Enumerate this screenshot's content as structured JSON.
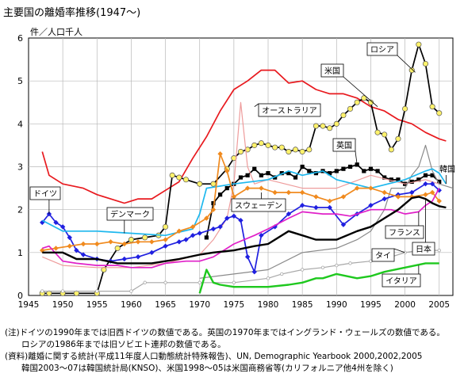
{
  "chart_data": {
    "type": "line",
    "title": "主要国の離婚率推移(1947〜)",
    "ylabel": "件／人口千人",
    "xlabel": "",
    "xlim": [
      1945,
      2007
    ],
    "ylim": [
      0,
      6
    ],
    "xticks": [
      1945,
      1950,
      1955,
      1960,
      1965,
      1970,
      1975,
      1980,
      1985,
      1990,
      1995,
      2000,
      2005
    ],
    "yticks": [
      0,
      1,
      2,
      3,
      4,
      5,
      6
    ],
    "grid": true,
    "series": [
      {
        "name": "米国",
        "color": "#e8191e",
        "marker": "none",
        "x": [
          1947,
          1948,
          1950,
          1953,
          1955,
          1957,
          1959,
          1961,
          1963,
          1965,
          1967,
          1969,
          1971,
          1973,
          1975,
          1977,
          1979,
          1981,
          1983,
          1985,
          1987,
          1989,
          1991,
          1993,
          1995,
          1997,
          1999,
          2001,
          2003,
          2005,
          2006
        ],
        "y": [
          3.35,
          2.8,
          2.6,
          2.5,
          2.35,
          2.25,
          2.15,
          2.25,
          2.25,
          2.45,
          2.65,
          3.2,
          3.7,
          4.3,
          4.8,
          5.0,
          5.25,
          5.25,
          4.95,
          5.0,
          4.8,
          4.7,
          4.7,
          4.6,
          4.4,
          4.3,
          4.1,
          4.0,
          3.8,
          3.65,
          3.6
        ]
      },
      {
        "name": "ロシア",
        "color": "#000000",
        "marker": "circle",
        "mfill": "#fff26b",
        "x": [
          1947,
          1948,
          1950,
          1952,
          1955,
          1956,
          1958,
          1960,
          1962,
          1964,
          1965,
          1966,
          1967,
          1968,
          1970,
          1972,
          1974,
          1975,
          1976,
          1977,
          1978,
          1979,
          1980,
          1981,
          1982,
          1983,
          1984,
          1985,
          1986,
          1987,
          1988,
          1989,
          1990,
          1991,
          1992,
          1993,
          1994,
          1995,
          1996,
          1997,
          1998,
          1999,
          2000,
          2001,
          2002,
          2003,
          2004,
          2005
        ],
        "y": [
          0.05,
          0.05,
          0.05,
          0.05,
          0.05,
          0.6,
          1.1,
          1.3,
          1.35,
          1.4,
          1.6,
          2.8,
          2.75,
          2.7,
          2.6,
          2.6,
          2.95,
          3.2,
          3.35,
          3.4,
          3.5,
          3.55,
          3.5,
          3.45,
          3.45,
          3.35,
          3.4,
          3.35,
          3.4,
          3.95,
          3.95,
          3.9,
          4.0,
          4.2,
          4.35,
          4.5,
          4.6,
          4.5,
          3.8,
          3.75,
          3.4,
          3.65,
          4.35,
          5.25,
          5.85,
          5.4,
          4.4,
          4.25
        ]
      },
      {
        "name": "英国",
        "color": "#000000",
        "marker": "square",
        "mfill": "#000000",
        "x": [
          1971,
          1972,
          1973,
          1974,
          1975,
          1976,
          1977,
          1978,
          1979,
          1980,
          1981,
          1982,
          1983,
          1984,
          1985,
          1986,
          1987,
          1988,
          1989,
          1990,
          1991,
          1992,
          1993,
          1994,
          1995,
          1996,
          1997,
          1998,
          1999,
          2000,
          2001,
          2002,
          2003,
          2004,
          2005
        ],
        "y": [
          1.35,
          2.15,
          2.35,
          2.5,
          2.6,
          2.75,
          2.8,
          2.95,
          2.8,
          2.85,
          2.75,
          2.85,
          2.85,
          2.75,
          3.0,
          2.9,
          2.85,
          2.9,
          2.85,
          2.9,
          2.95,
          3.0,
          3.05,
          2.9,
          2.95,
          2.9,
          2.75,
          2.7,
          2.7,
          2.6,
          2.65,
          2.7,
          2.8,
          2.8,
          2.65
        ]
      },
      {
        "name": "オーストラリア",
        "color": "#ee9c9c",
        "marker": "none",
        "x": [
          1947,
          1950,
          1955,
          1960,
          1965,
          1970,
          1972,
          1974,
          1975,
          1976,
          1977,
          1978,
          1980,
          1985,
          1990,
          1995,
          2000,
          2003,
          2005
        ],
        "y": [
          0.9,
          0.7,
          0.65,
          0.65,
          0.75,
          0.95,
          1.3,
          1.8,
          2.6,
          4.5,
          3.0,
          2.6,
          2.7,
          2.5,
          2.5,
          2.8,
          2.6,
          2.7,
          2.6
        ]
      },
      {
        "name": "韓国",
        "color": "#8a8a8a",
        "marker": "none",
        "x": [
          1970,
          1975,
          1980,
          1985,
          1990,
          1993,
          1995,
          1997,
          1998,
          1999,
          2000,
          2001,
          2002,
          2003,
          2004,
          2005,
          2006,
          2007
        ],
        "y": [
          0.4,
          0.5,
          0.6,
          1.0,
          1.1,
          1.3,
          1.5,
          2.0,
          2.5,
          2.5,
          2.5,
          2.8,
          3.0,
          3.5,
          2.9,
          2.6,
          2.55,
          2.5
        ]
      },
      {
        "name": "ドイツ",
        "color": "#2020e0",
        "marker": "diamond",
        "mfill": "#2020e0",
        "x": [
          1947,
          1948,
          1949,
          1950,
          1951,
          1952,
          1953,
          1955,
          1957,
          1959,
          1961,
          1963,
          1965,
          1967,
          1968,
          1969,
          1970,
          1972,
          1973,
          1974,
          1975,
          1976,
          1977,
          1978,
          1979,
          1981,
          1983,
          1985,
          1987,
          1989,
          1991,
          1993,
          1995,
          1997,
          1999,
          2001,
          2003,
          2004,
          2005
        ],
        "y": [
          1.7,
          1.9,
          1.7,
          1.6,
          1.35,
          1.05,
          0.95,
          0.85,
          0.8,
          0.85,
          0.9,
          1.0,
          1.15,
          1.25,
          1.3,
          1.4,
          1.45,
          1.55,
          1.6,
          1.8,
          1.85,
          1.75,
          0.9,
          0.55,
          1.4,
          1.6,
          1.9,
          2.1,
          2.05,
          2.05,
          1.65,
          1.9,
          2.1,
          2.25,
          2.35,
          2.4,
          2.6,
          2.6,
          2.45
        ]
      },
      {
        "name": "デンマーク",
        "color": "#1eb8ee",
        "marker": "none",
        "x": [
          1947,
          1950,
          1955,
          1960,
          1965,
          1969,
          1970,
          1971,
          1975,
          1980,
          1983,
          1985,
          1988,
          1990,
          1995,
          2000,
          2003,
          2004,
          2005,
          2006
        ],
        "y": [
          1.75,
          1.5,
          1.5,
          1.45,
          1.4,
          1.55,
          1.9,
          2.5,
          2.6,
          2.7,
          2.9,
          2.8,
          2.9,
          2.7,
          2.5,
          2.7,
          2.9,
          2.95,
          2.85,
          2.6
        ]
      },
      {
        "name": "スウェーデン",
        "color": "#f08a1e",
        "marker": "diamond",
        "mfill": "#f08a1e",
        "x": [
          1947,
          1949,
          1951,
          1953,
          1955,
          1957,
          1959,
          1961,
          1963,
          1965,
          1967,
          1969,
          1971,
          1972,
          1973,
          1974,
          1975,
          1977,
          1979,
          1981,
          1983,
          1985,
          1987,
          1989,
          1991,
          1993,
          1995,
          1997,
          1999,
          2001,
          2003,
          2004,
          2005
        ],
        "y": [
          1.05,
          1.1,
          1.15,
          1.2,
          1.2,
          1.25,
          1.2,
          1.25,
          1.25,
          1.3,
          1.5,
          1.6,
          1.8,
          2.0,
          3.3,
          2.9,
          2.3,
          2.5,
          2.5,
          2.4,
          2.4,
          2.4,
          2.3,
          2.2,
          2.3,
          2.5,
          2.5,
          2.4,
          2.3,
          2.3,
          2.35,
          2.4,
          2.2
        ]
      },
      {
        "name": "フランス",
        "color": "#e020c8",
        "marker": "none",
        "x": [
          1947,
          1948,
          1950,
          1952,
          1955,
          1958,
          1960,
          1963,
          1965,
          1968,
          1970,
          1972,
          1975,
          1978,
          1980,
          1983,
          1985,
          1988,
          1990,
          1992,
          1995,
          1998,
          2000,
          2002,
          2003,
          2004,
          2005
        ],
        "y": [
          1.1,
          1.15,
          0.8,
          0.75,
          0.7,
          0.7,
          0.65,
          0.65,
          0.75,
          0.8,
          0.8,
          0.9,
          1.2,
          1.4,
          1.55,
          1.8,
          1.95,
          1.9,
          1.9,
          1.85,
          2.0,
          2.0,
          1.9,
          1.95,
          2.1,
          2.2,
          2.5
        ]
      },
      {
        "name": "日本",
        "color": "#000000",
        "marker": "none",
        "x": [
          1947,
          1950,
          1952,
          1955,
          1958,
          1960,
          1963,
          1965,
          1967,
          1970,
          1972,
          1975,
          1978,
          1980,
          1983,
          1985,
          1987,
          1990,
          1993,
          1995,
          1997,
          1999,
          2001,
          2002,
          2003,
          2004,
          2005,
          2006
        ],
        "y": [
          1.0,
          1.0,
          0.85,
          0.85,
          0.75,
          0.75,
          0.75,
          0.8,
          0.85,
          0.95,
          1.0,
          1.05,
          1.15,
          1.2,
          1.5,
          1.4,
          1.3,
          1.3,
          1.5,
          1.6,
          1.8,
          2.0,
          2.27,
          2.3,
          2.25,
          2.15,
          2.08,
          2.05
        ]
      },
      {
        "name": "タイ",
        "color": "#a8a8a8",
        "marker": "circle-small",
        "mfill": "#ffffff",
        "x": [
          1947,
          1950,
          1955,
          1960,
          1962,
          1965,
          1970,
          1975,
          1980,
          1982,
          1985,
          1988,
          1990,
          1992,
          1995,
          1998,
          2000,
          2002,
          2004,
          2005
        ],
        "y": [
          0.1,
          0.1,
          0.1,
          0.1,
          0.3,
          0.3,
          0.3,
          0.3,
          0.4,
          0.5,
          0.6,
          0.65,
          0.7,
          0.75,
          0.8,
          0.9,
          1.0,
          1.05,
          1.05,
          1.05
        ]
      },
      {
        "name": "イタリア",
        "color": "#1ec81e",
        "marker": "none",
        "x": [
          1970,
          1971,
          1972,
          1973,
          1975,
          1978,
          1980,
          1983,
          1985,
          1987,
          1988,
          1990,
          1993,
          1995,
          1997,
          2000,
          2003,
          2005
        ],
        "y": [
          0.05,
          0.6,
          0.3,
          0.25,
          0.2,
          0.2,
          0.2,
          0.25,
          0.3,
          0.4,
          0.4,
          0.5,
          0.4,
          0.45,
          0.55,
          0.65,
          0.75,
          0.75
        ]
      }
    ],
    "labels": [
      {
        "text": "ロシア",
        "series": "ロシア",
        "box": true,
        "arrow": true
      },
      {
        "text": "米国",
        "series": "米国",
        "box": true,
        "arrow": true
      },
      {
        "text": "オーストラリア",
        "series": "オーストラリア",
        "box": true,
        "arrow": true
      },
      {
        "text": "英国",
        "series": "英国",
        "box": true,
        "arrow": true
      },
      {
        "text": "韓国",
        "series": "韓国",
        "box": false,
        "arrow": true
      },
      {
        "text": "ドイツ",
        "series": "ドイツ",
        "box": true,
        "arrow": true
      },
      {
        "text": "デンマーク",
        "series": "デンマーク",
        "box": true,
        "arrow": true
      },
      {
        "text": "スウェーデン",
        "series": "スウェーデン",
        "box": true,
        "arrow": true
      },
      {
        "text": "フランス",
        "series": "フランス",
        "box": true,
        "arrow": true
      },
      {
        "text": "日本",
        "series": "日本",
        "box": true,
        "arrow": true
      },
      {
        "text": "タイ",
        "series": "タイ",
        "box": true,
        "arrow": true
      },
      {
        "text": "イタリア",
        "series": "イタリア",
        "box": true,
        "arrow": true
      }
    ]
  },
  "notes": [
    "(注)ドイツの1990年までは旧西ドイツの数値である。英国の1970年まではイングランド・ウェールズの数値である。",
    "　　ロシアの1986年までは旧ソビエト連邦の数値である。",
    "(資料)離婚に関する統計(平成11年度人口動態統計特殊報告)、UN, Demographic Yearbook 2000,2002,2005",
    "　　韓国2003〜07は韓国統計局(KNSO)、米国1998〜05は米国商務省等(カリフォルニア他4州を除く)"
  ]
}
